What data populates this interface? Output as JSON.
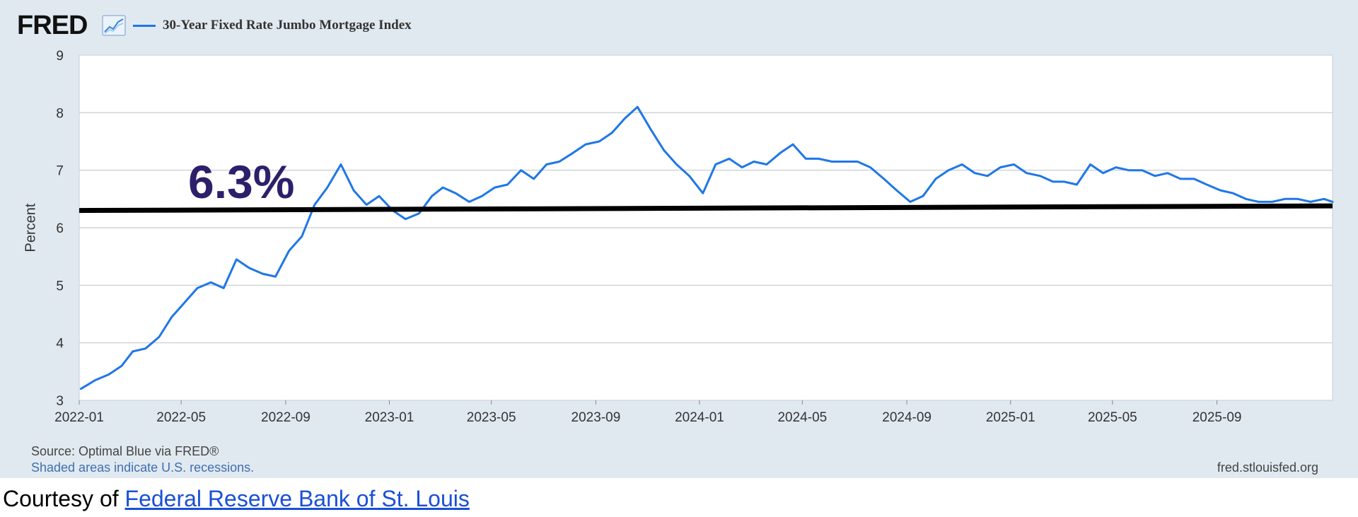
{
  "header": {
    "logo_text": "FRED",
    "series_label": "30-Year Fixed Rate Jumbo Mortgage Index"
  },
  "annotation": {
    "label": "6.3%",
    "value": 6.3
  },
  "footer": {
    "source": "Source: Optimal Blue via FRED®",
    "recession_note": "Shaded areas indicate U.S. recessions.",
    "site": "fred.stlouisfed.org"
  },
  "caption": {
    "prefix": "Courtesy of ",
    "link_text": "Federal Reserve Bank of St. Louis"
  },
  "colors": {
    "panel_bg": "#e1e9f0",
    "plot_bg": "#ffffff",
    "series": "#1f77e6",
    "annotation_line": "#000000",
    "annotation_text": "#2e1f6b",
    "link": "#1a4fd6"
  },
  "chart_data": {
    "type": "line",
    "title": "",
    "xlabel": "",
    "ylabel": "Percent",
    "ylim": [
      3,
      9
    ],
    "xlim": [
      "2022-01-01",
      "2026-01-15"
    ],
    "y_ticks": [
      3,
      4,
      5,
      6,
      7,
      8,
      9
    ],
    "x_ticks": [
      "2022-01",
      "2022-05",
      "2022-09",
      "2023-01",
      "2023-05",
      "2023-09",
      "2024-01",
      "2024-05",
      "2024-09",
      "2025-01",
      "2025-05",
      "2025-09"
    ],
    "grid": true,
    "legend": "top-left",
    "series": [
      {
        "name": "30-Year Fixed Rate Jumbo Mortgage Index",
        "color": "#1f77e6",
        "x": [
          "2022-01-03",
          "2022-01-20",
          "2022-02-05",
          "2022-02-20",
          "2022-03-05",
          "2022-03-20",
          "2022-04-05",
          "2022-04-20",
          "2022-05-05",
          "2022-05-20",
          "2022-06-05",
          "2022-06-20",
          "2022-07-05",
          "2022-07-20",
          "2022-08-05",
          "2022-08-20",
          "2022-09-05",
          "2022-09-20",
          "2022-10-05",
          "2022-10-20",
          "2022-11-05",
          "2022-11-20",
          "2022-12-05",
          "2022-12-20",
          "2023-01-05",
          "2023-01-20",
          "2023-02-05",
          "2023-02-20",
          "2023-03-05",
          "2023-03-20",
          "2023-04-05",
          "2023-04-20",
          "2023-05-05",
          "2023-05-20",
          "2023-06-05",
          "2023-06-20",
          "2023-07-05",
          "2023-07-20",
          "2023-08-05",
          "2023-08-20",
          "2023-09-05",
          "2023-09-20",
          "2023-10-05",
          "2023-10-20",
          "2023-11-05",
          "2023-11-20",
          "2023-12-05",
          "2023-12-20",
          "2024-01-05",
          "2024-01-20",
          "2024-02-05",
          "2024-02-20",
          "2024-03-05",
          "2024-03-20",
          "2024-04-05",
          "2024-04-20",
          "2024-05-05",
          "2024-05-20",
          "2024-06-05",
          "2024-06-20",
          "2024-07-05",
          "2024-07-20",
          "2024-08-05",
          "2024-08-20",
          "2024-09-05",
          "2024-09-20",
          "2024-10-05",
          "2024-10-20",
          "2024-11-05",
          "2024-11-20",
          "2024-12-05",
          "2024-12-20",
          "2025-01-05",
          "2025-01-20",
          "2025-02-05",
          "2025-02-20",
          "2025-03-05",
          "2025-03-20",
          "2025-04-05",
          "2025-04-20",
          "2025-05-05",
          "2025-05-20",
          "2025-06-05",
          "2025-06-20",
          "2025-07-05",
          "2025-07-20",
          "2025-08-05",
          "2025-08-20",
          "2025-09-05",
          "2025-09-20",
          "2025-10-05",
          "2025-10-20",
          "2025-11-05",
          "2025-11-20",
          "2025-12-05",
          "2025-12-20",
          "2026-01-05",
          "2026-01-15"
        ],
        "values": [
          3.2,
          3.35,
          3.45,
          3.6,
          3.85,
          3.9,
          4.1,
          4.45,
          4.7,
          4.95,
          5.05,
          4.95,
          5.45,
          5.3,
          5.2,
          5.15,
          5.6,
          5.85,
          6.4,
          6.7,
          7.1,
          6.65,
          6.4,
          6.55,
          6.3,
          6.15,
          6.25,
          6.55,
          6.7,
          6.6,
          6.45,
          6.55,
          6.7,
          6.75,
          7.0,
          6.85,
          7.1,
          7.15,
          7.3,
          7.45,
          7.5,
          7.65,
          7.9,
          8.1,
          7.7,
          7.35,
          7.1,
          6.9,
          6.6,
          7.1,
          7.2,
          7.05,
          7.15,
          7.1,
          7.3,
          7.45,
          7.2,
          7.2,
          7.15,
          7.15,
          7.15,
          7.05,
          6.85,
          6.65,
          6.45,
          6.55,
          6.85,
          7.0,
          7.1,
          6.95,
          6.9,
          7.05,
          7.1,
          6.95,
          6.9,
          6.8,
          6.8,
          6.75,
          7.1,
          6.95,
          7.05,
          7.0,
          7.0,
          6.9,
          6.95,
          6.85,
          6.85,
          6.75,
          6.65,
          6.6,
          6.5,
          6.45,
          6.45,
          6.5,
          6.5,
          6.45,
          6.5,
          6.45
        ]
      }
    ],
    "annotations": [
      {
        "type": "hline",
        "y": 6.3,
        "y_end": 6.38,
        "label": "6.3%"
      }
    ]
  }
}
